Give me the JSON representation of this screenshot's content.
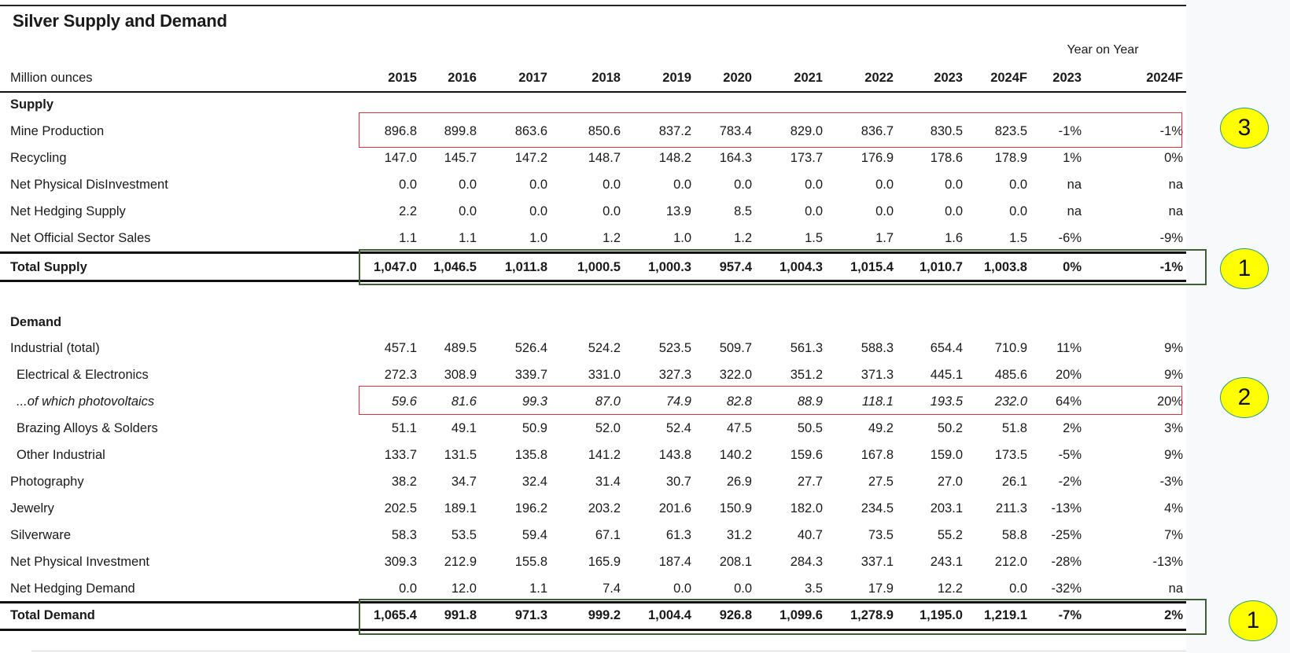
{
  "title": "Silver Supply and Demand",
  "header": {
    "unit_label": "Million ounces",
    "years": [
      "2015",
      "2016",
      "2017",
      "2018",
      "2019",
      "2020",
      "2021",
      "2022",
      "2023",
      "2024F"
    ],
    "yoy_title": "Year on Year",
    "yoy_years": [
      "2023",
      "2024F"
    ]
  },
  "supply": {
    "label": "Supply",
    "rows": [
      {
        "label": "Mine Production",
        "values": [
          "896.8",
          "899.8",
          "863.6",
          "850.6",
          "837.2",
          "783.4",
          "829.0",
          "836.7",
          "830.5",
          "823.5"
        ],
        "yoy": [
          "-1%",
          "-1%"
        ]
      },
      {
        "label": "Recycling",
        "values": [
          "147.0",
          "145.7",
          "147.2",
          "148.7",
          "148.2",
          "164.3",
          "173.7",
          "176.9",
          "178.6",
          "178.9"
        ],
        "yoy": [
          "1%",
          "0%"
        ]
      },
      {
        "label": "Net Physical DisInvestment",
        "values": [
          "0.0",
          "0.0",
          "0.0",
          "0.0",
          "0.0",
          "0.0",
          "0.0",
          "0.0",
          "0.0",
          "0.0"
        ],
        "yoy": [
          "na",
          "na"
        ]
      },
      {
        "label": "Net Hedging Supply",
        "values": [
          "2.2",
          "0.0",
          "0.0",
          "0.0",
          "13.9",
          "8.5",
          "0.0",
          "0.0",
          "0.0",
          "0.0"
        ],
        "yoy": [
          "na",
          "na"
        ]
      },
      {
        "label": "Net Official Sector Sales",
        "values": [
          "1.1",
          "1.1",
          "1.0",
          "1.2",
          "1.0",
          "1.2",
          "1.5",
          "1.7",
          "1.6",
          "1.5"
        ],
        "yoy": [
          "-6%",
          "-9%"
        ]
      }
    ],
    "total": {
      "label": "Total Supply",
      "values": [
        "1,047.0",
        "1,046.5",
        "1,011.8",
        "1,000.5",
        "1,000.3",
        "957.4",
        "1,004.3",
        "1,015.4",
        "1,010.7",
        "1,003.8"
      ],
      "yoy": [
        "0%",
        "-1%"
      ]
    }
  },
  "demand": {
    "label": "Demand",
    "rows": [
      {
        "label": "Industrial (total)",
        "values": [
          "457.1",
          "489.5",
          "526.4",
          "524.2",
          "523.5",
          "509.7",
          "561.3",
          "588.3",
          "654.4",
          "710.9"
        ],
        "yoy": [
          "11%",
          "9%"
        ],
        "style": "normal"
      },
      {
        "label": "Electrical & Electronics",
        "values": [
          "272.3",
          "308.9",
          "339.7",
          "331.0",
          "327.3",
          "322.0",
          "351.2",
          "371.3",
          "445.1",
          "485.6"
        ],
        "yoy": [
          "20%",
          "9%"
        ],
        "style": "indent"
      },
      {
        "label": "...of which photovoltaics",
        "values": [
          "59.6",
          "81.6",
          "99.3",
          "87.0",
          "74.9",
          "82.8",
          "88.9",
          "118.1",
          "193.5",
          "232.0"
        ],
        "yoy": [
          "64%",
          "20%"
        ],
        "style": "italic"
      },
      {
        "label": "Brazing Alloys & Solders",
        "values": [
          "51.1",
          "49.1",
          "50.9",
          "52.0",
          "52.4",
          "47.5",
          "50.5",
          "49.2",
          "50.2",
          "51.8"
        ],
        "yoy": [
          "2%",
          "3%"
        ],
        "style": "indent"
      },
      {
        "label": "Other Industrial",
        "values": [
          "133.7",
          "131.5",
          "135.8",
          "141.2",
          "143.8",
          "140.2",
          "159.6",
          "167.8",
          "159.0",
          "173.5"
        ],
        "yoy": [
          "-5%",
          "9%"
        ],
        "style": "indent"
      },
      {
        "label": "Photography",
        "values": [
          "38.2",
          "34.7",
          "32.4",
          "31.4",
          "30.7",
          "26.9",
          "27.7",
          "27.5",
          "27.0",
          "26.1"
        ],
        "yoy": [
          "-2%",
          "-3%"
        ],
        "style": "normal"
      },
      {
        "label": "Jewelry",
        "values": [
          "202.5",
          "189.1",
          "196.2",
          "203.2",
          "201.6",
          "150.9",
          "182.0",
          "234.5",
          "203.1",
          "211.3"
        ],
        "yoy": [
          "-13%",
          "4%"
        ],
        "style": "normal"
      },
      {
        "label": "Silverware",
        "values": [
          "58.3",
          "53.5",
          "59.4",
          "67.1",
          "61.3",
          "31.2",
          "40.7",
          "73.5",
          "55.2",
          "58.8"
        ],
        "yoy": [
          "-25%",
          "7%"
        ],
        "style": "normal"
      },
      {
        "label": "Net Physical Investment",
        "values": [
          "309.3",
          "212.9",
          "155.8",
          "165.9",
          "187.4",
          "208.1",
          "284.3",
          "337.1",
          "243.1",
          "212.0"
        ],
        "yoy": [
          "-28%",
          "-13%"
        ],
        "style": "normal"
      },
      {
        "label": "Net Hedging Demand",
        "values": [
          "0.0",
          "12.0",
          "1.1",
          "7.4",
          "0.0",
          "0.0",
          "3.5",
          "17.9",
          "12.2",
          "0.0"
        ],
        "yoy": [
          "-32%",
          "na"
        ],
        "style": "normal"
      }
    ],
    "total": {
      "label": "Total Demand",
      "values": [
        "1,065.4",
        "991.8",
        "971.3",
        "999.2",
        "1,004.4",
        "926.8",
        "1,099.6",
        "1,278.9",
        "1,195.0",
        "1,219.1"
      ],
      "yoy": [
        "-7%",
        "2%"
      ]
    }
  },
  "callouts": [
    "3",
    "1",
    "2",
    "1"
  ],
  "colors": {
    "highlight_red": "#e0303a",
    "highlight_green": "#3e5f34",
    "callout_fill": "#ffff00",
    "callout_border": "#2a9a8a"
  }
}
